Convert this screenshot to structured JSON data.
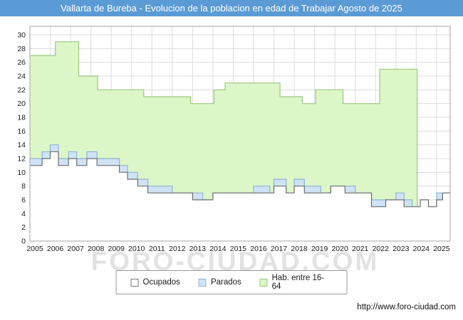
{
  "title_bar": {
    "text": "Vallarta de Bureba - Evolucion de la poblacion en edad de Trabajar Agosto de 2025",
    "bg": "#5b9bd5"
  },
  "watermark": {
    "text": "FORO-CIUDAD.COM"
  },
  "footer": {
    "url": "http://www.foro-ciudad.com"
  },
  "legend": {
    "items": [
      {
        "label": "Ocupados",
        "swatch": "#ffffff",
        "border": "#7a7a7a"
      },
      {
        "label": "Parados",
        "swatch": "#cfe3f5",
        "border": "#8fb4d4"
      },
      {
        "label": "Hab. entre 16-64",
        "swatch": "#dcf6c8",
        "border": "#9dc87e"
      }
    ]
  },
  "chart_data": {
    "type": "area",
    "title": "Vallarta de Bureba - Evolucion de la poblacion en edad de Trabajar Agosto de 2025",
    "xlabel": "",
    "ylabel": "",
    "x_range": [
      2005,
      2025.67
    ],
    "ylim": [
      0,
      30
    ],
    "y_ticks": [
      0,
      2,
      4,
      6,
      8,
      10,
      12,
      14,
      16,
      18,
      20,
      22,
      24,
      26,
      28,
      30
    ],
    "x_ticks": [
      2005,
      2006,
      2007,
      2008,
      2009,
      2010,
      2011,
      2012,
      2013,
      2014,
      2015,
      2016,
      2017,
      2018,
      2019,
      2020,
      2021,
      2022,
      2023,
      2024,
      2025
    ],
    "grid": true,
    "grid_color": "#dcdcdc",
    "border_color": "#a6a6a6",
    "legend_position": "bottom",
    "series": [
      {
        "name": "Hab. entre 16-64",
        "fill": "#dcf6c8",
        "stroke": "#9dc87e",
        "interpolation": "step-after",
        "points": [
          [
            2005.0,
            27
          ],
          [
            2006.25,
            29
          ],
          [
            2007.4,
            24
          ],
          [
            2008.33,
            22
          ],
          [
            2010.6,
            21
          ],
          [
            2012.9,
            20
          ],
          [
            2014.05,
            22
          ],
          [
            2014.6,
            23
          ],
          [
            2017.3,
            21
          ],
          [
            2018.4,
            20
          ],
          [
            2019.05,
            22
          ],
          [
            2020.4,
            20
          ],
          [
            2022.2,
            25
          ],
          [
            2024.05,
            5
          ],
          [
            2025.67,
            5
          ]
        ]
      },
      {
        "name": "Parados",
        "fill": "#cfe3f5",
        "stroke": "#8fb4d4",
        "interpolation": "step-after",
        "points": [
          [
            2005.0,
            12
          ],
          [
            2005.6,
            13
          ],
          [
            2006.0,
            14
          ],
          [
            2006.4,
            12
          ],
          [
            2006.9,
            13
          ],
          [
            2007.3,
            12
          ],
          [
            2007.8,
            13
          ],
          [
            2008.3,
            12
          ],
          [
            2009.0,
            12
          ],
          [
            2009.4,
            11
          ],
          [
            2009.8,
            10
          ],
          [
            2010.3,
            9
          ],
          [
            2010.8,
            8
          ],
          [
            2011.5,
            8
          ],
          [
            2012.0,
            7
          ],
          [
            2013.0,
            7
          ],
          [
            2013.5,
            6
          ],
          [
            2014.0,
            7
          ],
          [
            2016.0,
            8
          ],
          [
            2016.8,
            7
          ],
          [
            2017.0,
            9
          ],
          [
            2017.6,
            7
          ],
          [
            2018.0,
            9
          ],
          [
            2018.5,
            8
          ],
          [
            2019.3,
            7
          ],
          [
            2019.8,
            8
          ],
          [
            2020.5,
            8
          ],
          [
            2021.0,
            7
          ],
          [
            2021.8,
            6
          ],
          [
            2022.5,
            6
          ],
          [
            2023.0,
            7
          ],
          [
            2023.4,
            6
          ],
          [
            2023.8,
            5
          ],
          [
            2024.2,
            6
          ],
          [
            2024.6,
            5
          ],
          [
            2025.0,
            7
          ],
          [
            2025.67,
            7
          ]
        ]
      },
      {
        "name": "Ocupados",
        "fill": "#ffffff",
        "stroke": "#6e6e6e",
        "interpolation": "step-after",
        "points": [
          [
            2005.0,
            11
          ],
          [
            2005.6,
            12
          ],
          [
            2006.0,
            13
          ],
          [
            2006.4,
            11
          ],
          [
            2006.9,
            12
          ],
          [
            2007.3,
            11
          ],
          [
            2007.8,
            12
          ],
          [
            2008.3,
            11
          ],
          [
            2009.0,
            11
          ],
          [
            2009.4,
            10
          ],
          [
            2009.8,
            9
          ],
          [
            2010.3,
            8
          ],
          [
            2010.8,
            7
          ],
          [
            2011.5,
            7
          ],
          [
            2012.0,
            7
          ],
          [
            2013.0,
            6
          ],
          [
            2014.0,
            7
          ],
          [
            2016.0,
            7
          ],
          [
            2017.0,
            8
          ],
          [
            2017.6,
            7
          ],
          [
            2018.0,
            8
          ],
          [
            2018.5,
            7
          ],
          [
            2019.3,
            7
          ],
          [
            2019.8,
            8
          ],
          [
            2020.5,
            7
          ],
          [
            2021.0,
            7
          ],
          [
            2021.8,
            5
          ],
          [
            2022.5,
            6
          ],
          [
            2023.0,
            6
          ],
          [
            2023.4,
            5
          ],
          [
            2023.8,
            5
          ],
          [
            2024.2,
            6
          ],
          [
            2024.6,
            5
          ],
          [
            2025.0,
            6
          ],
          [
            2025.3,
            7
          ],
          [
            2025.67,
            7
          ]
        ]
      }
    ]
  }
}
